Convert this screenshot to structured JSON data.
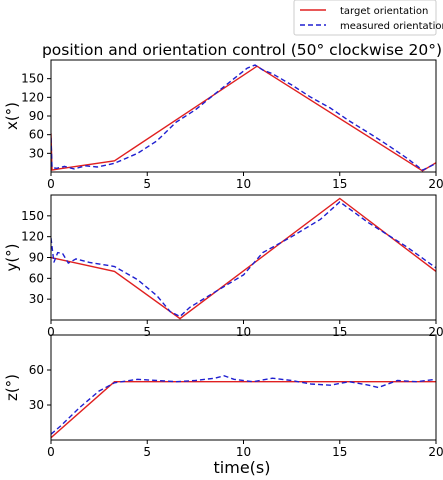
{
  "chart_data": {
    "type": "line",
    "title": "position and orientation control (50° clockwise 20°)",
    "xlabel": "time(s)",
    "legend": {
      "placement": "top-right",
      "entries": [
        {
          "label": "target orientation",
          "color": "#e02020",
          "style": "solid"
        },
        {
          "label": "measured orientation",
          "color": "#1f1fd0",
          "style": "dashed"
        }
      ]
    },
    "subplots": [
      {
        "ylabel": "x(°)",
        "xlim": [
          0,
          20
        ],
        "ylim": [
          0,
          180
        ],
        "xticks": [
          "0",
          "5",
          "10",
          "15",
          "20"
        ],
        "yticks": [
          "30",
          "60",
          "90",
          "120",
          "150"
        ],
        "series": [
          {
            "name": "target orientation",
            "x": [
              0,
              0.05,
              0.4,
              3.3,
              10.7,
              19.3,
              20
            ],
            "y": [
              62,
              3,
              5,
              18,
              170,
              2,
              15
            ]
          },
          {
            "name": "measured orientation",
            "x": [
              0,
              0.05,
              0.3,
              0.7,
              1.2,
              1.8,
              2.4,
              3.3,
              4.5,
              5.5,
              6.5,
              7.5,
              8.5,
              9.5,
              10.2,
              10.6,
              11.0,
              11.5,
              12.5,
              13.5,
              14.5,
              15.5,
              16.5,
              17.5,
              18.5,
              19.3,
              19.7,
              20
            ],
            "y": [
              55,
              7,
              6,
              9,
              5,
              10,
              8,
              14,
              30,
              50,
              80,
              100,
              125,
              150,
              167,
              172,
              164,
              158,
              140,
              120,
              103,
              82,
              63,
              43,
              22,
              3,
              9,
              14
            ]
          }
        ]
      },
      {
        "ylabel": "y(°)",
        "xlim": [
          0,
          20
        ],
        "ylim": [
          0,
          180
        ],
        "xticks": [
          "0",
          "5",
          "10",
          "15",
          "20"
        ],
        "yticks": [
          "30",
          "60",
          "90",
          "120",
          "150"
        ],
        "series": [
          {
            "name": "target orientation",
            "x": [
              0,
              3.3,
              6.7,
              15,
              20
            ],
            "y": [
              90,
              70,
              2,
              175,
              70
            ]
          },
          {
            "name": "measured orientation",
            "x": [
              0,
              0.15,
              0.35,
              0.6,
              0.9,
              1.3,
              2.0,
              3.3,
              4.5,
              5.5,
              6.2,
              6.7,
              7.2,
              8.5,
              10.0,
              11.0,
              12.5,
              14.0,
              15.0,
              16.5,
              18.5,
              20
            ],
            "y": [
              118,
              83,
              97,
              96,
              82,
              88,
              83,
              77,
              58,
              35,
              12,
              5,
              18,
              40,
              65,
              97,
              120,
              145,
              170,
              140,
              105,
              75
            ]
          }
        ]
      },
      {
        "ylabel": "z(°)",
        "xlim": [
          0,
          20
        ],
        "ylim": [
          0,
          90
        ],
        "xticks": [
          "0",
          "5",
          "10",
          "15",
          "20"
        ],
        "yticks": [
          "30",
          "60"
        ],
        "series": [
          {
            "name": "target orientation",
            "x": [
              0,
              3.3,
              20
            ],
            "y": [
              2,
              50,
              50
            ]
          },
          {
            "name": "measured orientation",
            "x": [
              0,
              0.5,
              1.5,
              2.5,
              3.3,
              4.5,
              5.5,
              6.5,
              7.5,
              8.5,
              9.0,
              9.5,
              10.5,
              11.5,
              12.5,
              13.5,
              14.5,
              15.5,
              16.5,
              17.0,
              18.0,
              19.0,
              20.0
            ],
            "y": [
              5,
              12,
              28,
              42,
              49,
              52,
              51,
              50,
              51,
              53,
              55,
              52,
              50,
              53,
              51,
              48,
              47,
              50,
              47,
              45,
              51,
              50,
              52
            ]
          }
        ]
      }
    ]
  }
}
